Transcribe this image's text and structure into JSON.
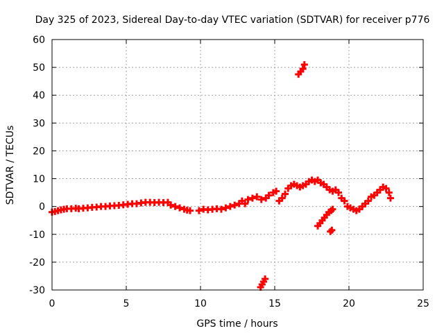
{
  "chart_data": {
    "type": "scatter",
    "title": "Day 325 of 2023, Sidereal Day-to-day VTEC variation (SDTVAR) for receiver p776",
    "xlabel": "GPS time / hours",
    "ylabel": "SDTVAR / TECUs",
    "xlim": [
      0,
      25
    ],
    "ylim": [
      -30,
      60
    ],
    "xticks": [
      0,
      5,
      10,
      15,
      20,
      25
    ],
    "yticks": [
      -30,
      -20,
      -10,
      0,
      10,
      20,
      30,
      40,
      50,
      60
    ],
    "grid": true,
    "marker_color": "#ff0000",
    "series": [
      {
        "name": "SDTVAR",
        "x": [
          0.0,
          0.2,
          0.4,
          0.6,
          0.8,
          1.0,
          1.3,
          1.6,
          1.8,
          2.1,
          2.4,
          2.7,
          3.0,
          3.3,
          3.6,
          3.9,
          4.2,
          4.5,
          4.8,
          5.1,
          5.4,
          5.7,
          6.0,
          6.3,
          6.6,
          6.9,
          7.2,
          7.5,
          7.8,
          8.0,
          8.3,
          8.6,
          8.9,
          9.1,
          9.3,
          9.9,
          10.2,
          10.5,
          10.8,
          11.1,
          11.4,
          11.7,
          12.0,
          12.3,
          12.6,
          12.8,
          13.0,
          13.2,
          13.5,
          13.8,
          14.1,
          14.4,
          14.6,
          14.9,
          15.1,
          15.3,
          15.5,
          15.7,
          15.9,
          16.1,
          16.3,
          16.5,
          16.7,
          16.9,
          17.1,
          17.3,
          17.5,
          17.7,
          17.9,
          18.1,
          18.3,
          18.5,
          18.7,
          18.9,
          19.1,
          19.3,
          19.5,
          19.7,
          19.9,
          20.1,
          20.3,
          20.5,
          20.7,
          20.9,
          21.1,
          21.3,
          21.5,
          21.7,
          21.9,
          22.1,
          22.3,
          22.5,
          22.7,
          22.8,
          16.6,
          16.75,
          16.9,
          17.0,
          14.05,
          14.15,
          14.25,
          14.35,
          17.9,
          18.05,
          18.2,
          18.35,
          18.5,
          18.65,
          18.8,
          18.9,
          18.75,
          18.85
        ],
        "y": [
          -2.0,
          -1.8,
          -1.5,
          -1.2,
          -1.0,
          -0.8,
          -0.8,
          -0.6,
          -0.8,
          -0.6,
          -0.5,
          -0.3,
          -0.2,
          0.0,
          0.0,
          0.2,
          0.3,
          0.4,
          0.6,
          0.8,
          1.0,
          1.0,
          1.3,
          1.5,
          1.5,
          1.4,
          1.5,
          1.4,
          1.5,
          0.5,
          0.0,
          -0.5,
          -1.0,
          -1.3,
          -1.5,
          -1.5,
          -1.0,
          -1.2,
          -1.0,
          -0.8,
          -1.0,
          -0.5,
          0.0,
          0.5,
          1.0,
          2.0,
          1.0,
          2.5,
          3.0,
          3.5,
          2.5,
          3.0,
          4.0,
          5.0,
          5.5,
          2.0,
          3.0,
          4.5,
          6.5,
          7.5,
          8.0,
          7.5,
          7.0,
          7.5,
          8.0,
          9.0,
          9.5,
          9.0,
          9.5,
          8.5,
          8.0,
          7.0,
          6.0,
          5.5,
          6.0,
          5.0,
          3.0,
          2.0,
          0.0,
          -0.5,
          -1.0,
          -1.5,
          -1.0,
          0.0,
          1.0,
          2.0,
          3.5,
          4.0,
          5.0,
          6.0,
          7.0,
          6.5,
          5.0,
          3.0,
          47.5,
          48.5,
          49.5,
          51.0,
          -29.0,
          -28.0,
          -27.0,
          -26.0,
          -7.0,
          -6.0,
          -5.0,
          -4.0,
          -3.0,
          -2.0,
          -1.5,
          -1.0,
          -9.0,
          -8.5
        ]
      }
    ]
  }
}
